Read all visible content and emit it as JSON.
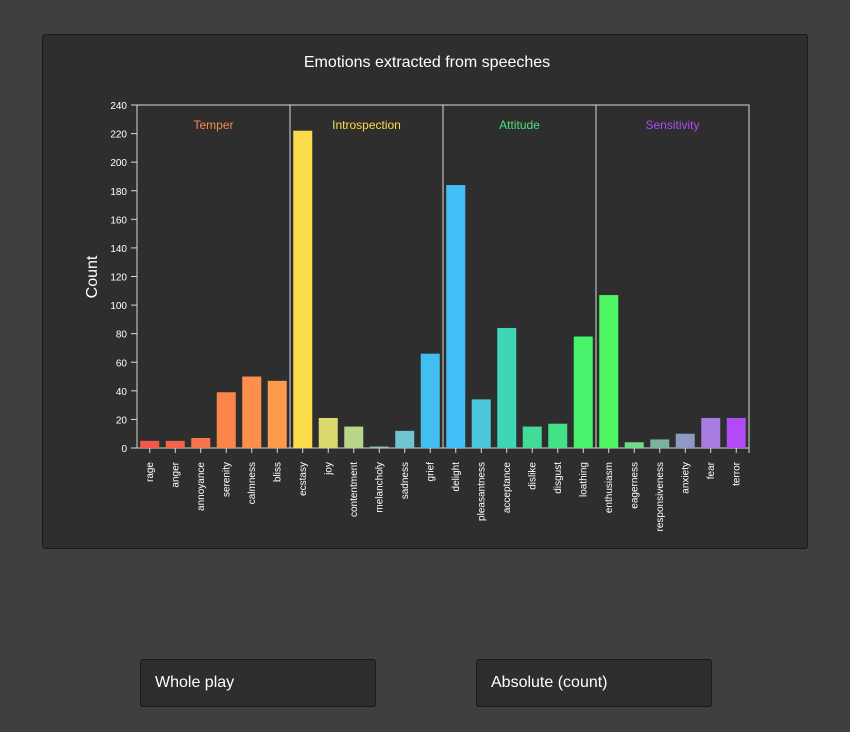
{
  "chart_data": {
    "type": "bar",
    "title": "Emotions extracted from speeches",
    "ylabel": "Count",
    "xlabel": "",
    "ylim": [
      0,
      240
    ],
    "yticks": [
      0,
      20,
      40,
      60,
      80,
      100,
      120,
      140,
      160,
      180,
      200,
      220,
      240
    ],
    "groups": [
      {
        "name": "Temper",
        "color": "#f9894f",
        "categories": [
          "rage",
          "anger",
          "annoyance",
          "serenity",
          "calmness",
          "bliss"
        ]
      },
      {
        "name": "Introspection",
        "color": "#fddc4b",
        "categories": [
          "ecstasy",
          "joy",
          "contentment",
          "melancholy",
          "sadness",
          "grief"
        ]
      },
      {
        "name": "Attitude",
        "color": "#4de07a",
        "categories": [
          "delight",
          "pleasantness",
          "acceptance",
          "dislike",
          "disgust",
          "loathing"
        ]
      },
      {
        "name": "Sensitivity",
        "color": "#b04bf5",
        "categories": [
          "enthusiasm",
          "eagerness",
          "responsiveness",
          "anxiety",
          "fear",
          "terror"
        ]
      }
    ],
    "categories": [
      "rage",
      "anger",
      "annoyance",
      "serenity",
      "calmness",
      "bliss",
      "ecstasy",
      "joy",
      "contentment",
      "melancholy",
      "sadness",
      "grief",
      "delight",
      "pleasantness",
      "acceptance",
      "dislike",
      "disgust",
      "loathing",
      "enthusiasm",
      "eagerness",
      "responsiveness",
      "anxiety",
      "fear",
      "terror"
    ],
    "values": [
      5,
      5,
      7,
      39,
      50,
      47,
      222,
      21,
      15,
      1,
      12,
      66,
      184,
      34,
      84,
      15,
      17,
      78,
      107,
      4,
      6,
      10,
      21,
      21
    ],
    "colors": [
      "#f5584a",
      "#f5654a",
      "#f7744c",
      "#fb864c",
      "#fd8f4c",
      "#fc9a4d",
      "#fddc4b",
      "#d9d970",
      "#b9d68a",
      "#8fc8b0",
      "#6ec4d0",
      "#42bff0",
      "#42bff7",
      "#4ac9dc",
      "#3fd6b5",
      "#42dc98",
      "#44e287",
      "#49f26b",
      "#4ff765",
      "#6fdc8a",
      "#7bb3a0",
      "#8e9ac4",
      "#a87ce0",
      "#b04bf5"
    ],
    "grid": false
  },
  "controls": {
    "scope_value": "Whole play",
    "mode_value": "Absolute (count)"
  }
}
